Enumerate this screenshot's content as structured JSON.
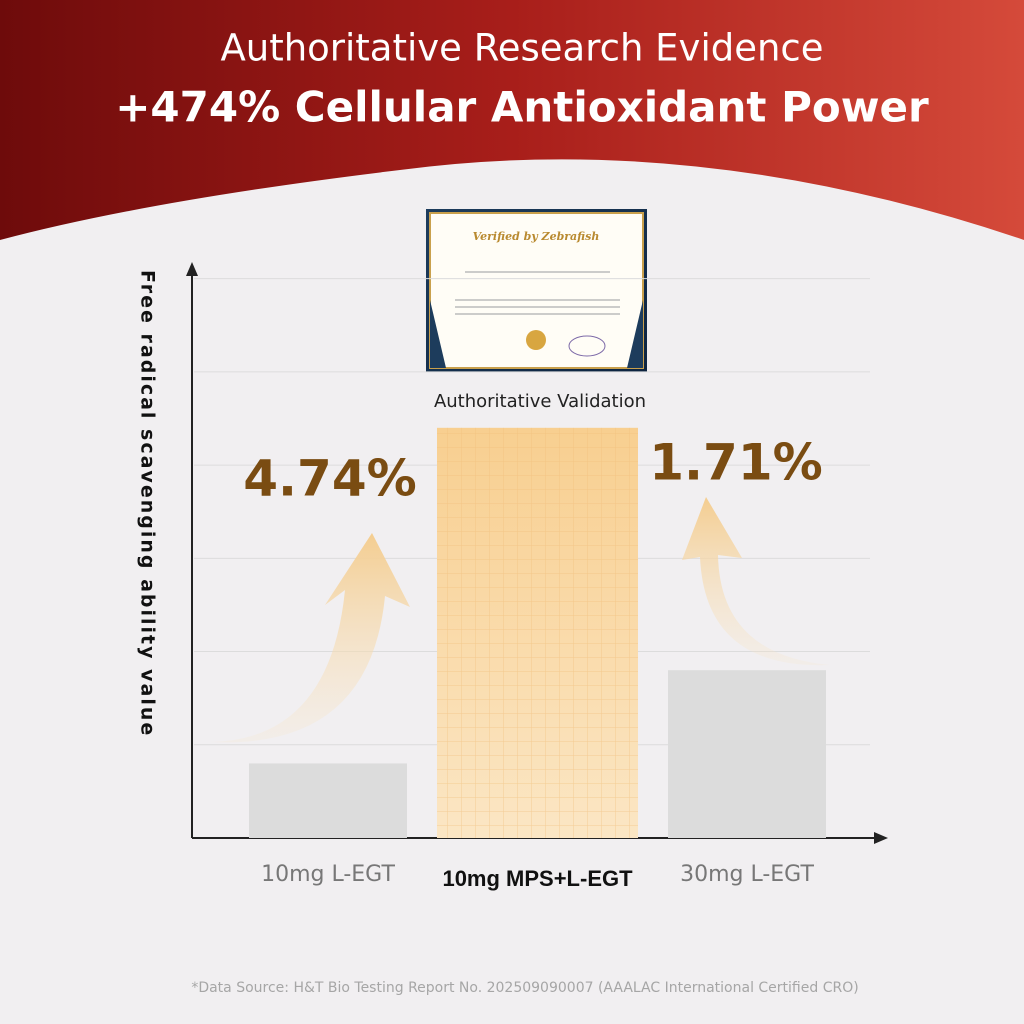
{
  "chart_data": {
    "type": "bar",
    "title": "Authoritative Research Evidence",
    "subtitle": "+474% Cellular Antioxidant Power",
    "y_label": "Free radical scavenging ability value",
    "categories": [
      "10mg L-EGT",
      "10mg MPS+L-EGT",
      "30mg L-EGT"
    ],
    "values": [
      0.8,
      4.4,
      1.8
    ],
    "colors": [
      "#dcdcdc",
      "#f8d49c",
      "#dcdcdc"
    ],
    "ylim": [
      0,
      6.2
    ],
    "yticks": [
      1,
      2,
      3,
      4,
      5,
      6
    ],
    "grid": true,
    "certificate_title": "Verified by Zebrafish",
    "certificate_caption": "Authoritative Validation",
    "annotations": [
      "4.74%",
      "1.71%"
    ],
    "footnote": "*Data Source: H&T Bio Testing Report No. 202509090007 (AAALAC International Certified CRO)"
  }
}
